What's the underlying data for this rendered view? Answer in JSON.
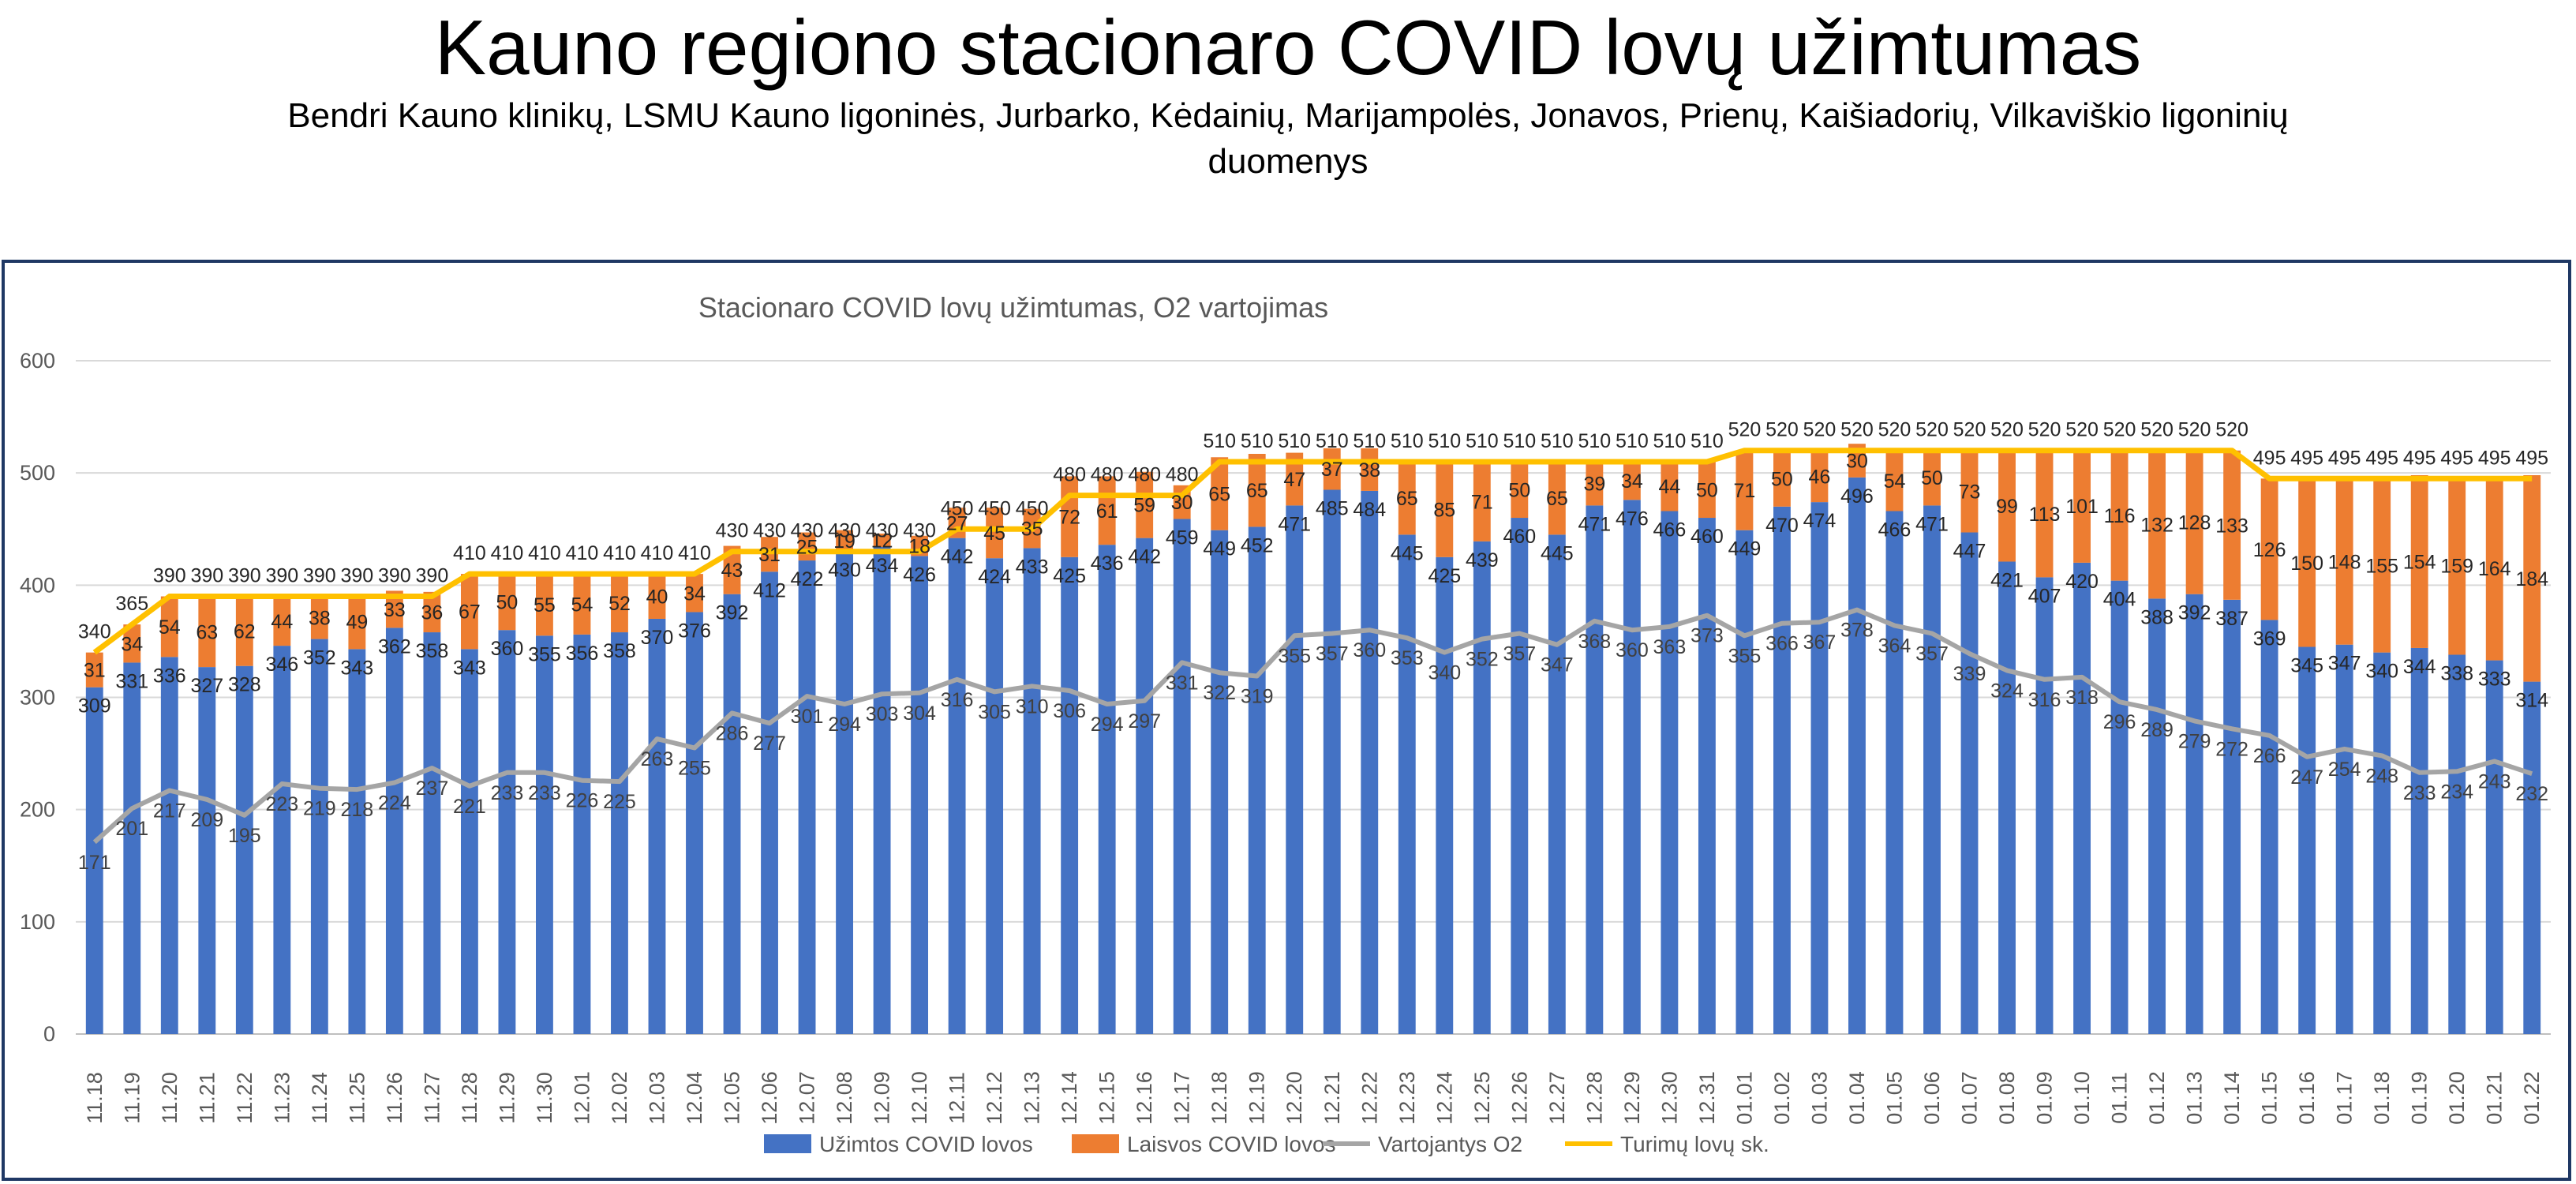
{
  "title": "Kauno regiono stacionaro COVID lovų užimtumas",
  "subtitle": "Bendri Kauno klinikų, LSMU Kauno ligoninės, Jurbarko, Kėdainių, Marijampolės, Jonavos, Prienų, Kaišiadorių, Vilkaviškio ligoninių duomenys",
  "colors": {
    "occupied": "#4472c4",
    "free": "#ed7d31",
    "oxygen": "#a5a5a5",
    "capacity": "#ffc000",
    "frame": "#1f3864"
  },
  "chart_data": {
    "type": "bar",
    "stacked": true,
    "title": "Stacionaro COVID lovų užimtumas, O2 vartojimas",
    "xlabel": "",
    "ylabel": "",
    "ylim": [
      0,
      600
    ],
    "yticks": [
      0,
      100,
      200,
      300,
      400,
      500,
      600
    ],
    "grid": true,
    "legend_position": "bottom",
    "categories": [
      "11.18",
      "11.19",
      "11.20",
      "11.21",
      "11.22",
      "11.23",
      "11.24",
      "11.25",
      "11.26",
      "11.27",
      "11.28",
      "11.29",
      "11.30",
      "12.01",
      "12.02",
      "12.03",
      "12.04",
      "12.05",
      "12.06",
      "12.07",
      "12.08",
      "12.09",
      "12.10",
      "12.11",
      "12.12",
      "12.13",
      "12.14",
      "12.15",
      "12.16",
      "12.17",
      "12.18",
      "12.19",
      "12.20",
      "12.21",
      "12.22",
      "12.23",
      "12.24",
      "12.25",
      "12.26",
      "12.27",
      "12.28",
      "12.29",
      "12.30",
      "12.31",
      "01.01",
      "01.02",
      "01.03",
      "01.04",
      "01.05",
      "01.06",
      "01.07",
      "01.08",
      "01.09",
      "01.10",
      "01.11",
      "01.12",
      "01.13",
      "01.14",
      "01.15",
      "01.16",
      "01.17",
      "01.18",
      "01.19",
      "01.20",
      "01.21",
      "01.22"
    ],
    "series": [
      {
        "name": "Užimtos COVID lovos",
        "kind": "bar",
        "values": [
          309,
          331,
          336,
          327,
          328,
          346,
          352,
          343,
          362,
          358,
          343,
          360,
          355,
          356,
          358,
          370,
          376,
          392,
          412,
          422,
          430,
          434,
          426,
          442,
          424,
          433,
          425,
          436,
          442,
          459,
          449,
          452,
          471,
          485,
          484,
          445,
          425,
          439,
          460,
          445,
          471,
          476,
          466,
          460,
          449,
          470,
          474,
          496,
          466,
          471,
          447,
          421,
          407,
          420,
          404,
          388,
          392,
          387,
          369,
          345,
          347,
          340,
          344,
          338,
          333,
          314
        ]
      },
      {
        "name": "Laisvos COVID lovos",
        "kind": "bar",
        "values": [
          31,
          34,
          54,
          63,
          62,
          44,
          38,
          49,
          33,
          36,
          67,
          50,
          55,
          54,
          52,
          40,
          34,
          43,
          31,
          25,
          19,
          12,
          18,
          27,
          45,
          35,
          72,
          61,
          59,
          30,
          65,
          65,
          47,
          37,
          38,
          65,
          85,
          71,
          50,
          65,
          39,
          34,
          44,
          50,
          71,
          50,
          46,
          30,
          54,
          50,
          73,
          99,
          113,
          101,
          116,
          132,
          128,
          133,
          126,
          150,
          148,
          155,
          154,
          159,
          164,
          184
        ]
      },
      {
        "name": "Vartojantys O2",
        "kind": "line",
        "values": [
          171,
          201,
          217,
          209,
          195,
          223,
          219,
          218,
          224,
          237,
          221,
          233,
          233,
          226,
          225,
          263,
          255,
          286,
          277,
          301,
          294,
          303,
          304,
          316,
          305,
          310,
          306,
          294,
          297,
          331,
          322,
          319,
          355,
          357,
          360,
          353,
          340,
          352,
          357,
          347,
          368,
          360,
          363,
          373,
          355,
          366,
          367,
          378,
          364,
          357,
          339,
          324,
          316,
          318,
          296,
          289,
          279,
          272,
          266,
          247,
          254,
          248,
          233,
          234,
          243,
          232
        ]
      },
      {
        "name": "Turimų lovų sk.",
        "kind": "line",
        "values": [
          340,
          365,
          390,
          390,
          390,
          390,
          390,
          390,
          390,
          390,
          410,
          410,
          410,
          410,
          410,
          410,
          410,
          430,
          430,
          430,
          430,
          430,
          430,
          450,
          450,
          450,
          480,
          480,
          480,
          480,
          510,
          510,
          510,
          510,
          510,
          510,
          510,
          510,
          510,
          510,
          510,
          510,
          510,
          510,
          520,
          520,
          520,
          520,
          520,
          520,
          520,
          520,
          520,
          520,
          520,
          520,
          520,
          520,
          495,
          495,
          495,
          495,
          495,
          495,
          495,
          495
        ]
      }
    ]
  }
}
